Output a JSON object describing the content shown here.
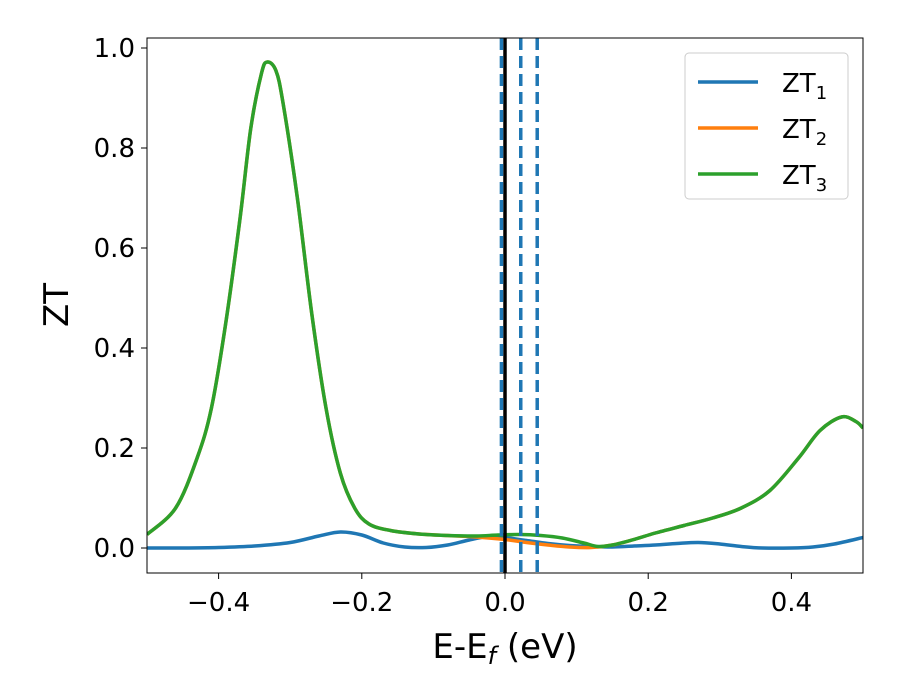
{
  "chart_data": {
    "type": "line",
    "xlabel": "E-E",
    "xlabel_sub": "f",
    "xlabel_unit": " (eV)",
    "ylabel": "ZT",
    "xlim": [
      -0.5,
      0.5
    ],
    "ylim": [
      -0.05,
      1.02
    ],
    "x_ticks": [
      -0.4,
      -0.2,
      0.0,
      0.2,
      0.4
    ],
    "x_tick_labels": [
      "−0.4",
      "−0.2",
      "0.0",
      "0.2",
      "0.4"
    ],
    "y_ticks": [
      0.0,
      0.2,
      0.4,
      0.6,
      0.8,
      1.0
    ],
    "y_tick_labels": [
      "0.0",
      "0.2",
      "0.4",
      "0.6",
      "0.8",
      "1.0"
    ],
    "grid": false,
    "legend_position": "top-right",
    "vertical_lines": [
      {
        "x": 0.0,
        "style": "solid",
        "color": "#000000"
      },
      {
        "x": -0.005,
        "style": "dashed",
        "color": "#1f77b4"
      },
      {
        "x": 0.022,
        "style": "dashed",
        "color": "#1f77b4"
      },
      {
        "x": 0.045,
        "style": "dashed",
        "color": "#1f77b4"
      }
    ],
    "series": [
      {
        "name": "ZT",
        "name_sub": "1",
        "color": "#1f77b4",
        "points": [
          [
            -0.5,
            0.0
          ],
          [
            -0.45,
            0.0
          ],
          [
            -0.4,
            0.001
          ],
          [
            -0.35,
            0.004
          ],
          [
            -0.3,
            0.011
          ],
          [
            -0.26,
            0.024
          ],
          [
            -0.23,
            0.032
          ],
          [
            -0.2,
            0.026
          ],
          [
            -0.17,
            0.01
          ],
          [
            -0.14,
            0.002
          ],
          [
            -0.11,
            0.001
          ],
          [
            -0.08,
            0.006
          ],
          [
            -0.05,
            0.016
          ],
          [
            -0.02,
            0.024
          ],
          [
            0.0,
            0.021
          ],
          [
            0.03,
            0.015
          ],
          [
            0.06,
            0.009
          ],
          [
            0.09,
            0.005
          ],
          [
            0.12,
            0.003
          ],
          [
            0.15,
            0.002
          ],
          [
            0.18,
            0.004
          ],
          [
            0.21,
            0.006
          ],
          [
            0.24,
            0.009
          ],
          [
            0.27,
            0.011
          ],
          [
            0.3,
            0.008
          ],
          [
            0.33,
            0.003
          ],
          [
            0.36,
            0.0
          ],
          [
            0.4,
            0.0
          ],
          [
            0.43,
            0.002
          ],
          [
            0.46,
            0.008
          ],
          [
            0.5,
            0.021
          ]
        ]
      },
      {
        "name": "ZT",
        "name_sub": "2",
        "color": "#ff7f0e",
        "points": [
          [
            -0.5,
            0.027
          ],
          [
            -0.46,
            0.08
          ],
          [
            -0.43,
            0.18
          ],
          [
            -0.41,
            0.28
          ],
          [
            -0.39,
            0.45
          ],
          [
            -0.37,
            0.66
          ],
          [
            -0.355,
            0.84
          ],
          [
            -0.34,
            0.95
          ],
          [
            -0.332,
            0.972
          ],
          [
            -0.32,
            0.955
          ],
          [
            -0.31,
            0.89
          ],
          [
            -0.29,
            0.7
          ],
          [
            -0.27,
            0.47
          ],
          [
            -0.25,
            0.28
          ],
          [
            -0.23,
            0.15
          ],
          [
            -0.21,
            0.08
          ],
          [
            -0.19,
            0.048
          ],
          [
            -0.16,
            0.035
          ],
          [
            -0.12,
            0.028
          ],
          [
            -0.08,
            0.025
          ],
          [
            -0.04,
            0.022
          ],
          [
            0.0,
            0.017
          ],
          [
            0.03,
            0.011
          ],
          [
            0.06,
            0.006
          ],
          [
            0.09,
            0.002
          ],
          [
            0.12,
            0.001
          ],
          [
            0.15,
            0.006
          ],
          [
            0.18,
            0.017
          ],
          [
            0.21,
            0.03
          ],
          [
            0.25,
            0.045
          ],
          [
            0.29,
            0.06
          ],
          [
            0.33,
            0.08
          ],
          [
            0.37,
            0.115
          ],
          [
            0.41,
            0.18
          ],
          [
            0.44,
            0.235
          ],
          [
            0.47,
            0.262
          ],
          [
            0.49,
            0.253
          ],
          [
            0.5,
            0.24
          ]
        ]
      },
      {
        "name": "ZT",
        "name_sub": "3",
        "color": "#2ca02c",
        "points": [
          [
            -0.5,
            0.027
          ],
          [
            -0.46,
            0.08
          ],
          [
            -0.43,
            0.18
          ],
          [
            -0.41,
            0.28
          ],
          [
            -0.39,
            0.45
          ],
          [
            -0.37,
            0.66
          ],
          [
            -0.355,
            0.84
          ],
          [
            -0.34,
            0.95
          ],
          [
            -0.332,
            0.972
          ],
          [
            -0.32,
            0.955
          ],
          [
            -0.31,
            0.89
          ],
          [
            -0.29,
            0.7
          ],
          [
            -0.27,
            0.47
          ],
          [
            -0.25,
            0.28
          ],
          [
            -0.23,
            0.15
          ],
          [
            -0.21,
            0.08
          ],
          [
            -0.19,
            0.048
          ],
          [
            -0.16,
            0.035
          ],
          [
            -0.12,
            0.028
          ],
          [
            -0.08,
            0.025
          ],
          [
            -0.04,
            0.024
          ],
          [
            -0.01,
            0.026
          ],
          [
            0.02,
            0.027
          ],
          [
            0.05,
            0.025
          ],
          [
            0.08,
            0.02
          ],
          [
            0.11,
            0.01
          ],
          [
            0.13,
            0.003
          ],
          [
            0.15,
            0.006
          ],
          [
            0.18,
            0.017
          ],
          [
            0.21,
            0.03
          ],
          [
            0.25,
            0.045
          ],
          [
            0.29,
            0.06
          ],
          [
            0.33,
            0.08
          ],
          [
            0.37,
            0.115
          ],
          [
            0.41,
            0.18
          ],
          [
            0.44,
            0.235
          ],
          [
            0.47,
            0.262
          ],
          [
            0.49,
            0.253
          ],
          [
            0.5,
            0.24
          ]
        ]
      }
    ]
  }
}
